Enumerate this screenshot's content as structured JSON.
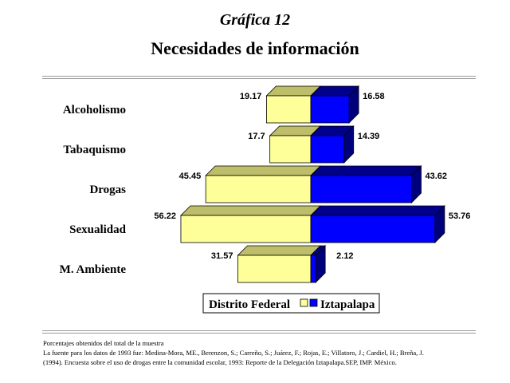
{
  "chart_data": {
    "type": "bar",
    "orientation": "horizontal-diverging",
    "title": "Necesidades de información",
    "subtitle": "Gráfica 12",
    "categories": [
      "Alcoholismo",
      "Tabaquismo",
      "Drogas",
      "Sexualidad",
      "M. Ambiente"
    ],
    "series": [
      {
        "name": "Distrito Federal",
        "values": [
          19.17,
          17.7,
          45.45,
          56.22,
          31.57
        ],
        "color": "#ffff99",
        "side": "left"
      },
      {
        "name": "Iztapalapa",
        "values": [
          16.58,
          14.39,
          43.62,
          53.76,
          2.12
        ],
        "color": "#0000ff",
        "side": "right"
      }
    ],
    "legend_position": "bottom",
    "grid": false
  },
  "notes": [
    "Porcentajes obtenidos del total de la muestra",
    "La fuente para los datos de 1993 fue: Medina-Mora, ME., Berenzon, S.; Carreño, S.; Juárez, F.; Rojas, E.; Villatoro, J.; Cardiel, H.; Breña, J.",
    "(1994). Encuesta sobre el uso de drogas entre la comunidad escolar, 1993: Reporte de la Delegación Iztapalapa.SEP, IMP. México."
  ]
}
